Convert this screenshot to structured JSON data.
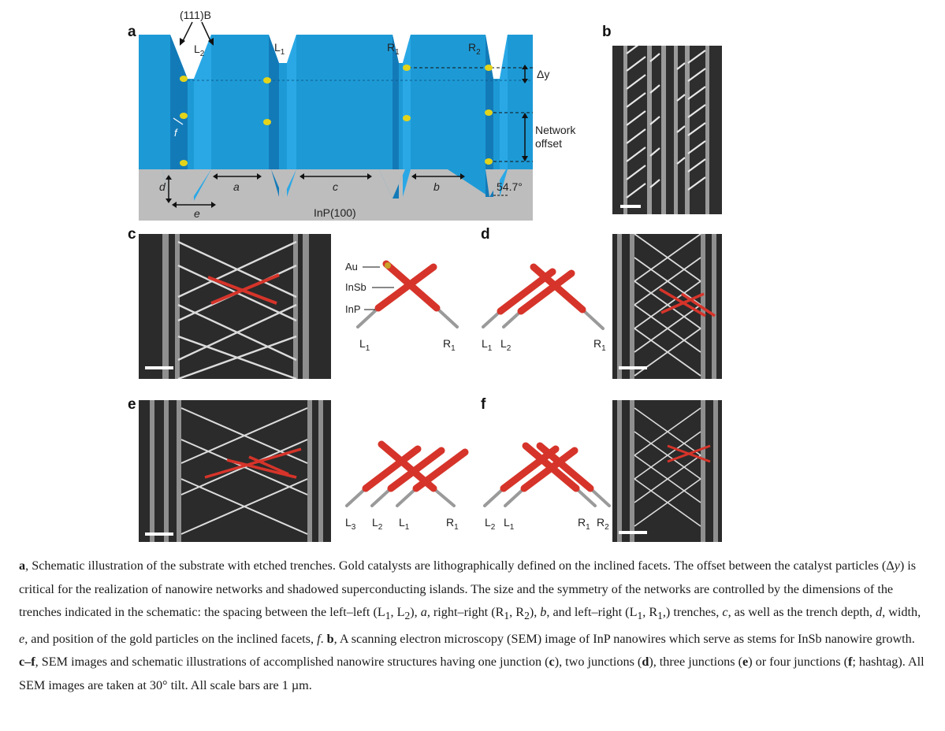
{
  "panels": {
    "a": "a",
    "b": "b",
    "c": "c",
    "d": "d",
    "e": "e",
    "f": "f"
  },
  "schematic_a": {
    "facet_label": "(111)B",
    "trench_labels": [
      "L",
      "L",
      "R",
      "R"
    ],
    "trench_subs": [
      "2",
      "1",
      "1",
      "2"
    ],
    "delta_y": "Δy",
    "network_offset": [
      "Network",
      "offset"
    ],
    "f_label": "f",
    "dims": {
      "a": "a",
      "b": "b",
      "c": "c",
      "d": "d",
      "e": "e"
    },
    "angle": "54.7°",
    "substrate": "InP(100)",
    "colors": {
      "top": "#1d9ad6",
      "facet_dark": "#1479b8",
      "facet_light": "#2aa8e6",
      "substrate": "#bdbdbd",
      "gold": "#e3d41a"
    }
  },
  "legend_c": {
    "materials": [
      "Au",
      "InSb",
      "InP"
    ]
  },
  "junction_labels": {
    "c": {
      "left": [
        [
          "L",
          "1"
        ]
      ],
      "right": [
        [
          "R",
          "1"
        ]
      ]
    },
    "d": {
      "left": [
        [
          "L",
          "1"
        ],
        [
          "L",
          "2"
        ]
      ],
      "right": [
        [
          "R",
          "1"
        ]
      ]
    },
    "e": {
      "left": [
        [
          "L",
          "3"
        ],
        [
          "L",
          "2"
        ],
        [
          "L",
          "1"
        ]
      ],
      "right": [
        [
          "R",
          "1"
        ]
      ]
    },
    "f": {
      "left": [
        [
          "L",
          "2"
        ],
        [
          "L",
          "1"
        ]
      ],
      "right": [
        [
          "R",
          "1"
        ],
        [
          "R",
          "2"
        ]
      ]
    }
  },
  "wire_colors": {
    "insb": "#d6342a",
    "inp": "#9a9a9a",
    "au": "#c9a227"
  },
  "caption": {
    "a_label": "a",
    "a_text_1": ", Schematic illustration of the substrate with etched trenches. Gold catalysts are lithographically defined on the inclined facets. The offset between the catalyst particles (Δ",
    "a_y": "y",
    "a_text_2": ") is critical for the realization of nanowire networks and shadowed superconducting islands. The size and the symmetry of the networks are controlled by the dimensions of the trenches indicated in the schematic: the spacing between the left–left (L",
    "s1": "1",
    "comma_L": ", L",
    "s2": "2",
    "a_text_3": "), ",
    "var_a": "a",
    "a_text_4": ", right–right (R",
    "s3": "1",
    "comma_R": ", R",
    "s4": "2",
    "a_text_5": "), ",
    "var_b": "b",
    "a_text_6": ", and left–right (L",
    "s5": "1",
    "comma_R2": ", R",
    "s6": "1",
    "a_text_7": ",) trenches, ",
    "var_c": "c",
    "a_text_8": ", as well as the trench depth, ",
    "var_d": "d",
    "a_text_9": ", width, ",
    "var_e": "e",
    "a_text_10": ", and position of the gold particles on the inclined facets, ",
    "var_f": "f",
    "a_text_11": ". ",
    "b_label": "b",
    "b_text": ", A scanning electron microscopy (SEM) image of InP nanowires which serve as stems for InSb nanowire growth. ",
    "cf_label": "c–f",
    "cf_text_1": ", SEM images and schematic illustrations of accomplished nanowire structures having one junction (",
    "c_ref": "c",
    "cf_text_2": "), two junctions (",
    "d_ref": "d",
    "cf_text_3": "), three junctions (",
    "e_ref": "e",
    "cf_text_4": ") or four junctions (",
    "f_ref": "f",
    "cf_text_5": "; hashtag). All SEM images are taken at 30° tilt. All scale bars are 1 µm."
  }
}
